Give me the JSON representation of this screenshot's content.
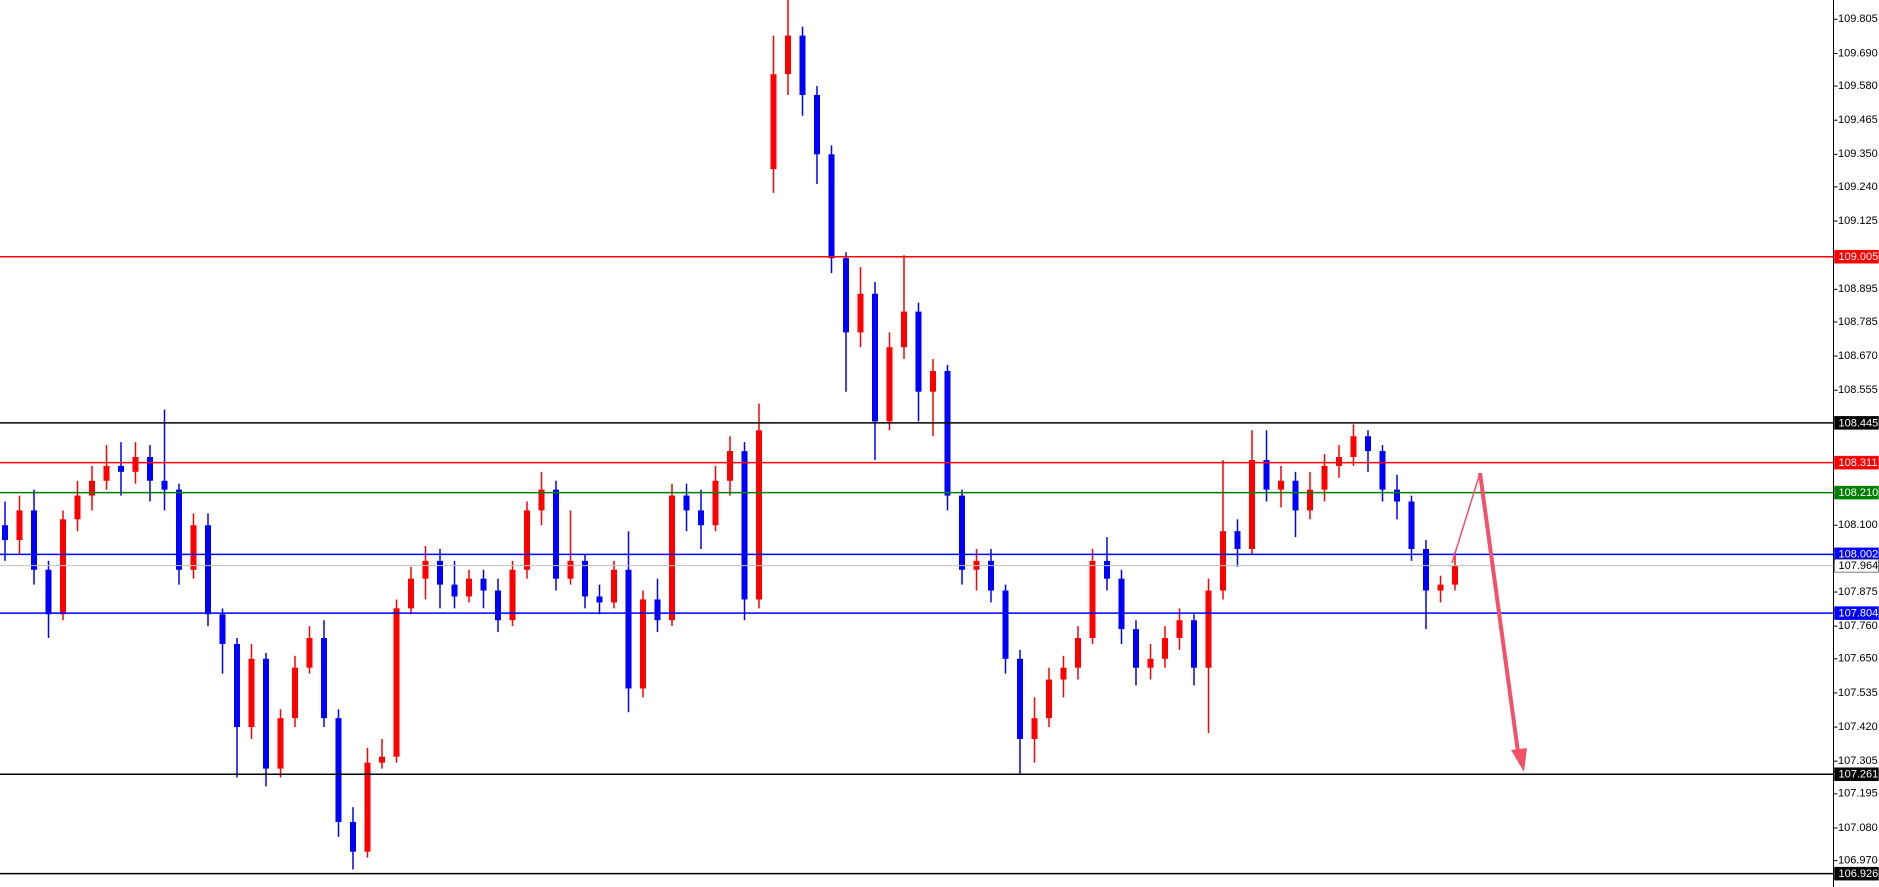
{
  "chart_data": {
    "type": "candlestick",
    "up_color": "#ff0000",
    "down_color": "#0000ff",
    "ylim": [
      106.881,
      109.87
    ],
    "yticks": [
      {
        "value": 109.805,
        "label": "109.805"
      },
      {
        "value": 109.69,
        "label": "109.690"
      },
      {
        "value": 109.58,
        "label": "109.580"
      },
      {
        "value": 109.465,
        "label": "109.465"
      },
      {
        "value": 109.35,
        "label": "109.350"
      },
      {
        "value": 109.24,
        "label": "109.240"
      },
      {
        "value": 109.125,
        "label": "109.125"
      },
      {
        "value": 108.895,
        "label": "108.895"
      },
      {
        "value": 108.785,
        "label": "108.785"
      },
      {
        "value": 108.67,
        "label": "108.670"
      },
      {
        "value": 108.555,
        "label": "108.555"
      },
      {
        "value": 108.1,
        "label": "108.100"
      },
      {
        "value": 107.875,
        "label": "107.875"
      },
      {
        "value": 107.76,
        "label": "107.760"
      },
      {
        "value": 107.65,
        "label": "107.650"
      },
      {
        "value": 107.535,
        "label": "107.535"
      },
      {
        "value": 107.42,
        "label": "107.420"
      },
      {
        "value": 107.305,
        "label": "107.305"
      },
      {
        "value": 107.195,
        "label": "107.195"
      },
      {
        "value": 107.08,
        "label": "107.080"
      },
      {
        "value": 106.97,
        "label": "106.970"
      }
    ],
    "levels": [
      {
        "value": 109.005,
        "color": "#ff0000"
      },
      {
        "value": 108.445,
        "color": "#000000"
      },
      {
        "value": 108.311,
        "color": "#ff0000"
      },
      {
        "value": 108.21,
        "label": "108.210",
        "color": "#008000"
      },
      {
        "value": 108.002,
        "color": "#0000ff"
      },
      {
        "value": 107.804,
        "color": "#0000ff"
      },
      {
        "value": 107.261,
        "color": "#000000"
      },
      {
        "value": 106.926,
        "color": "#000000"
      }
    ],
    "current_price": {
      "value": 107.964,
      "color": "#c0c0c0"
    },
    "ohlc": [
      [
        108.1,
        108.18,
        107.98,
        108.05
      ],
      [
        108.05,
        108.2,
        108.0,
        108.15
      ],
      [
        108.15,
        108.22,
        107.9,
        107.95
      ],
      [
        107.95,
        107.98,
        107.72,
        107.8
      ],
      [
        107.8,
        108.15,
        107.78,
        108.12
      ],
      [
        108.12,
        108.25,
        108.08,
        108.2
      ],
      [
        108.2,
        108.3,
        108.15,
        108.25
      ],
      [
        108.25,
        108.37,
        108.22,
        108.3
      ],
      [
        108.3,
        108.38,
        108.2,
        108.28
      ],
      [
        108.28,
        108.38,
        108.24,
        108.33
      ],
      [
        108.33,
        108.37,
        108.18,
        108.25
      ],
      [
        108.25,
        108.49,
        108.15,
        108.22
      ],
      [
        108.22,
        108.24,
        107.9,
        107.95
      ],
      [
        107.95,
        108.14,
        107.92,
        108.1
      ],
      [
        108.1,
        108.14,
        107.76,
        107.8
      ],
      [
        107.8,
        107.82,
        107.6,
        107.7
      ],
      [
        107.7,
        107.72,
        107.25,
        107.42
      ],
      [
        107.42,
        107.7,
        107.38,
        107.65
      ],
      [
        107.65,
        107.67,
        107.22,
        107.28
      ],
      [
        107.28,
        107.48,
        107.25,
        107.45
      ],
      [
        107.45,
        107.66,
        107.42,
        107.62
      ],
      [
        107.62,
        107.76,
        107.6,
        107.72
      ],
      [
        107.72,
        107.78,
        107.42,
        107.45
      ],
      [
        107.45,
        107.48,
        107.05,
        107.1
      ],
      [
        107.1,
        107.15,
        106.94,
        107.0
      ],
      [
        107.0,
        107.35,
        106.98,
        107.3
      ],
      [
        107.3,
        107.38,
        107.28,
        107.32
      ],
      [
        107.32,
        107.85,
        107.3,
        107.82
      ],
      [
        107.82,
        107.96,
        107.8,
        107.92
      ],
      [
        107.92,
        108.03,
        107.85,
        107.98
      ],
      [
        107.98,
        108.02,
        107.82,
        107.9
      ],
      [
        107.9,
        107.98,
        107.82,
        107.86
      ],
      [
        107.86,
        107.95,
        107.84,
        107.92
      ],
      [
        107.92,
        107.95,
        107.82,
        107.88
      ],
      [
        107.88,
        107.92,
        107.74,
        107.78
      ],
      [
        107.78,
        107.98,
        107.76,
        107.95
      ],
      [
        107.95,
        108.18,
        107.92,
        108.15
      ],
      [
        108.15,
        108.28,
        108.1,
        108.22
      ],
      [
        108.22,
        108.25,
        107.88,
        107.92
      ],
      [
        107.92,
        108.15,
        107.9,
        107.98
      ],
      [
        107.98,
        108.0,
        107.82,
        107.86
      ],
      [
        107.86,
        107.9,
        107.8,
        107.84
      ],
      [
        107.84,
        107.98,
        107.82,
        107.95
      ],
      [
        107.95,
        108.08,
        107.47,
        107.55
      ],
      [
        107.55,
        107.88,
        107.52,
        107.85
      ],
      [
        107.85,
        107.92,
        107.74,
        107.78
      ],
      [
        107.78,
        108.24,
        107.76,
        108.2
      ],
      [
        108.2,
        108.24,
        108.08,
        108.15
      ],
      [
        108.15,
        108.22,
        108.02,
        108.1
      ],
      [
        108.1,
        108.3,
        108.08,
        108.25
      ],
      [
        108.25,
        108.4,
        108.2,
        108.35
      ],
      [
        108.35,
        108.38,
        107.78,
        107.85
      ],
      [
        107.85,
        108.51,
        107.82,
        108.42
      ],
      [
        109.3,
        109.75,
        109.22,
        109.62
      ],
      [
        109.62,
        109.87,
        109.55,
        109.75
      ],
      [
        109.75,
        109.78,
        109.48,
        109.55
      ],
      [
        109.55,
        109.58,
        109.25,
        109.35
      ],
      [
        109.35,
        109.38,
        108.95,
        109.0
      ],
      [
        109.0,
        109.02,
        108.55,
        108.75
      ],
      [
        108.75,
        108.97,
        108.7,
        108.88
      ],
      [
        108.88,
        108.92,
        108.32,
        108.45
      ],
      [
        108.45,
        108.75,
        108.42,
        108.7
      ],
      [
        108.7,
        109.01,
        108.66,
        108.82
      ],
      [
        108.82,
        108.85,
        108.45,
        108.55
      ],
      [
        108.55,
        108.66,
        108.4,
        108.62
      ],
      [
        108.62,
        108.64,
        108.15,
        108.2
      ],
      [
        108.2,
        108.22,
        107.9,
        107.95
      ],
      [
        107.95,
        108.02,
        107.88,
        107.98
      ],
      [
        107.98,
        108.02,
        107.84,
        107.88
      ],
      [
        107.88,
        107.9,
        107.6,
        107.65
      ],
      [
        107.65,
        107.68,
        107.26,
        107.38
      ],
      [
        107.38,
        107.52,
        107.3,
        107.45
      ],
      [
        107.45,
        107.62,
        107.42,
        107.58
      ],
      [
        107.58,
        107.66,
        107.52,
        107.62
      ],
      [
        107.62,
        107.76,
        107.58,
        107.72
      ],
      [
        107.72,
        108.02,
        107.7,
        107.98
      ],
      [
        107.98,
        108.06,
        107.88,
        107.92
      ],
      [
        107.92,
        107.95,
        107.7,
        107.75
      ],
      [
        107.75,
        107.78,
        107.56,
        107.62
      ],
      [
        107.62,
        107.7,
        107.58,
        107.65
      ],
      [
        107.65,
        107.76,
        107.62,
        107.72
      ],
      [
        107.72,
        107.82,
        107.68,
        107.78
      ],
      [
        107.78,
        107.8,
        107.56,
        107.62
      ],
      [
        107.62,
        107.92,
        107.4,
        107.88
      ],
      [
        107.88,
        108.32,
        107.85,
        108.08
      ],
      [
        108.08,
        108.12,
        107.96,
        108.02
      ],
      [
        108.02,
        108.42,
        108.0,
        108.32
      ],
      [
        108.32,
        108.42,
        108.18,
        108.22
      ],
      [
        108.22,
        108.3,
        108.16,
        108.25
      ],
      [
        108.25,
        108.28,
        108.06,
        108.15
      ],
      [
        108.15,
        108.28,
        108.12,
        108.22
      ],
      [
        108.22,
        108.34,
        108.18,
        108.3
      ],
      [
        108.3,
        108.37,
        108.26,
        108.33
      ],
      [
        108.33,
        108.44,
        108.3,
        108.4
      ],
      [
        108.4,
        108.42,
        108.28,
        108.35
      ],
      [
        108.35,
        108.37,
        108.18,
        108.22
      ],
      [
        108.22,
        108.27,
        108.12,
        108.18
      ],
      [
        108.18,
        108.2,
        107.98,
        108.02
      ],
      [
        108.02,
        108.05,
        107.75,
        107.88
      ],
      [
        107.88,
        107.93,
        107.84,
        107.9
      ],
      [
        107.9,
        108.01,
        107.88,
        107.964
      ]
    ]
  }
}
